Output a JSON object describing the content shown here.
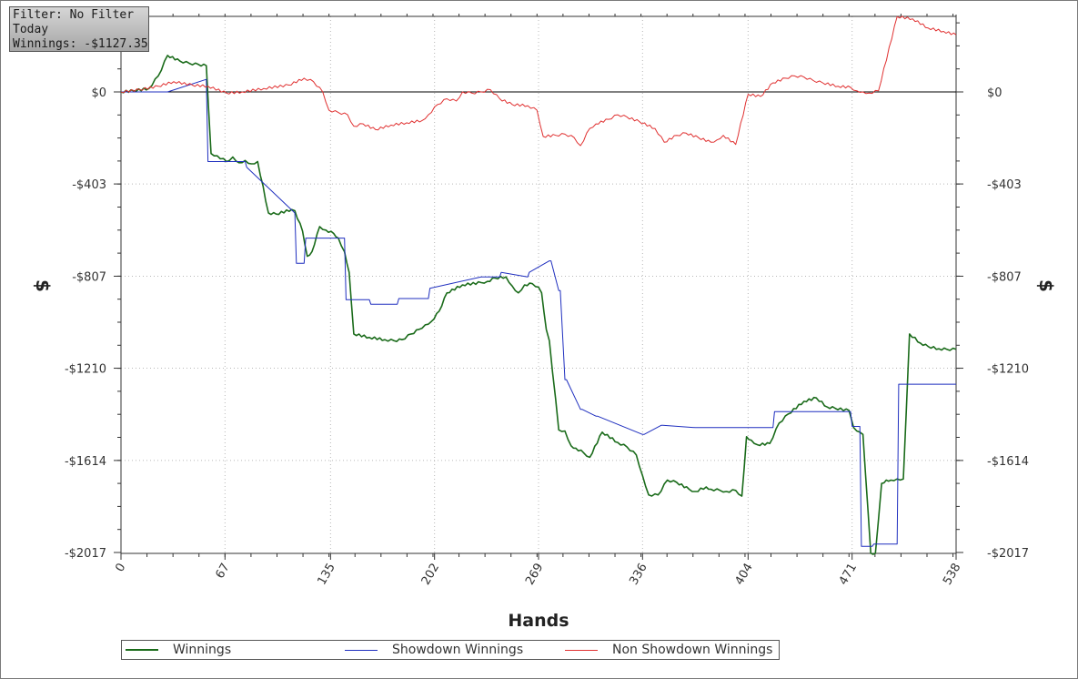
{
  "info_box": {
    "line1": "Filter: No Filter",
    "line2": "Today",
    "line3": "Winnings: -$1127.35"
  },
  "legend": [
    {
      "label": "Winnings",
      "color": "#1a6b1a"
    },
    {
      "label": "Showdown Winnings",
      "color": "#1f2fbf"
    },
    {
      "label": "Non Showdown Winnings",
      "color": "#e03030"
    }
  ],
  "chart_data": {
    "type": "line",
    "xlabel": "Hands",
    "ylabel": "$",
    "xlim": [
      0,
      538
    ],
    "ylim": [
      -2017,
      330
    ],
    "x_ticks": [
      "0",
      "67",
      "135",
      "202",
      "269",
      "336",
      "404",
      "471",
      "538"
    ],
    "x_tick_values": [
      0,
      67,
      135,
      202,
      269,
      336,
      404,
      471,
      538
    ],
    "y_ticks": [
      "$0",
      "-$403",
      "-$807",
      "-$1210",
      "-$1614",
      "-$2017"
    ],
    "y_tick_values": [
      0,
      -403,
      -807,
      -1210,
      -1614,
      -2017
    ],
    "grid": true,
    "legend_position": "bottom",
    "series": [
      {
        "name": "Winnings",
        "color": "#1a6b1a",
        "x": [
          0,
          8,
          18,
          24,
          30,
          38,
          44,
          50,
          55,
          58,
          62,
          68,
          72,
          76,
          80,
          84,
          88,
          95,
          100,
          110,
          112,
          117,
          120,
          123,
          128,
          132,
          137,
          140,
          144,
          147,
          150,
          160,
          170,
          176,
          181,
          187,
          192,
          196,
          200,
          205,
          210,
          220,
          232,
          236,
          241,
          248,
          252,
          256,
          260,
          265,
          269,
          271,
          274,
          276,
          282,
          286,
          290,
          293,
          298,
          302,
          310,
          320,
          326,
          332,
          336,
          340,
          346,
          352,
          358,
          366,
          370,
          377,
          380,
          386,
          390,
          396,
          400,
          403,
          406,
          410,
          418,
          424,
          430,
          440,
          448,
          455,
          460,
          469,
          470,
          472,
          476,
          478,
          483,
          486,
          490,
          493,
          496,
          500,
          504,
          508,
          515,
          520,
          527,
          532,
          538
        ],
        "y": [
          0,
          5,
          15,
          70,
          160,
          135,
          125,
          120,
          115,
          -270,
          -280,
          -305,
          -285,
          -310,
          -300,
          -315,
          -305,
          -530,
          -535,
          -515,
          -520,
          -610,
          -720,
          -700,
          -590,
          -605,
          -620,
          -640,
          -700,
          -790,
          -1060,
          -1075,
          -1085,
          -1090,
          -1085,
          -1060,
          -1040,
          -1020,
          -1005,
          -960,
          -880,
          -845,
          -835,
          -830,
          -815,
          -810,
          -850,
          -880,
          -845,
          -840,
          -855,
          -880,
          -1040,
          -1090,
          -1480,
          -1485,
          -1550,
          -1560,
          -1580,
          -1600,
          -1490,
          -1535,
          -1555,
          -1590,
          -1680,
          -1765,
          -1765,
          -1700,
          -1710,
          -1740,
          -1750,
          -1730,
          -1740,
          -1745,
          -1750,
          -1745,
          -1770,
          -1510,
          -1525,
          -1545,
          -1540,
          -1450,
          -1410,
          -1355,
          -1340,
          -1380,
          -1385,
          -1395,
          -1420,
          -1470,
          -1490,
          -1500,
          -2020,
          -2020,
          -1715,
          -1700,
          -1700,
          -1695,
          -1695,
          -1060,
          -1100,
          -1115,
          -1125,
          -1127.35,
          -1127.35
        ],
        "steps": [
          12,
          8,
          6,
          5,
          4,
          3,
          2,
          1,
          1,
          1,
          3,
          2,
          3,
          2,
          3,
          2,
          2,
          1,
          1,
          1,
          1,
          2,
          1,
          2,
          2,
          3,
          2,
          1,
          2,
          3,
          5,
          5,
          2,
          2,
          2,
          2,
          2,
          2,
          3,
          2,
          5,
          4,
          3,
          2,
          1,
          2,
          2,
          3,
          3,
          1,
          2,
          2,
          1,
          1,
          1,
          4,
          2,
          2,
          2,
          3,
          3,
          2,
          2,
          2,
          2,
          3,
          3,
          2,
          3,
          2,
          3,
          2,
          2,
          2,
          2,
          2,
          1,
          3,
          3,
          4,
          3,
          3,
          3,
          3,
          3,
          3,
          3,
          3,
          1,
          1,
          1,
          1,
          1,
          1,
          3,
          3,
          3,
          3,
          1,
          2,
          3,
          3,
          3,
          2,
          1
        ]
      },
      {
        "name": "Showdown Winnings",
        "color": "#1f2fbf",
        "x": [
          0,
          30,
          55,
          56,
          80,
          81,
          112,
          113,
          118,
          119,
          144,
          145,
          160,
          161,
          178,
          179,
          198,
          199,
          232,
          233,
          244,
          245,
          262,
          263,
          276,
          277,
          282,
          283,
          286,
          287,
          296,
          297,
          306,
          307,
          336,
          337,
          348,
          349,
          370,
          371,
          420,
          421,
          470,
          471,
          476,
          477,
          484,
          485,
          500,
          501,
          538
        ],
        "y": [
          0,
          0,
          55,
          -305,
          -305,
          -330,
          -530,
          -750,
          -750,
          -640,
          -640,
          -910,
          -910,
          -930,
          -930,
          -905,
          -905,
          -860,
          -810,
          -810,
          -810,
          -790,
          -810,
          -790,
          -740,
          -740,
          -870,
          -870,
          -1260,
          -1260,
          -1390,
          -1390,
          -1420,
          -1420,
          -1500,
          -1500,
          -1460,
          -1460,
          -1470,
          -1470,
          -1470,
          -1400,
          -1400,
          -1465,
          -1465,
          -1990,
          -1990,
          -1980,
          -1980,
          -1280,
          -1280
        ]
      },
      {
        "name": "Non Showdown Winnings",
        "color": "#e03030",
        "x": [
          0,
          12,
          24,
          34,
          46,
          56,
          68,
          78,
          92,
          108,
          118,
          124,
          130,
          134,
          140,
          146,
          150,
          156,
          164,
          174,
          184,
          194,
          198,
          204,
          210,
          216,
          220,
          226,
          232,
          238,
          244,
          252,
          262,
          268,
          272,
          280,
          286,
          292,
          296,
          302,
          306,
          314,
          320,
          326,
          334,
          344,
          350,
          358,
          364,
          372,
          380,
          384,
          388,
          396,
          404,
          412,
          420,
          428,
          434,
          440,
          446,
          452,
          462,
          470,
          474,
          478,
          482,
          488,
          500,
          510,
          520,
          530,
          538
        ],
        "y": [
          0,
          10,
          25,
          45,
          30,
          25,
          -5,
          0,
          15,
          30,
          60,
          45,
          0,
          -80,
          -90,
          -100,
          -150,
          -140,
          -165,
          -145,
          -135,
          -125,
          -100,
          -55,
          -30,
          -40,
          0,
          -5,
          0,
          10,
          -30,
          -55,
          -60,
          -80,
          -195,
          -190,
          -185,
          -200,
          -235,
          -160,
          -140,
          -120,
          -100,
          -110,
          -130,
          -160,
          -220,
          -190,
          -180,
          -200,
          -220,
          -210,
          -190,
          -230,
          -10,
          -20,
          40,
          60,
          70,
          65,
          50,
          40,
          25,
          20,
          5,
          0,
          -5,
          5,
          330,
          320,
          280,
          265,
          250
        ]
      }
    ]
  }
}
